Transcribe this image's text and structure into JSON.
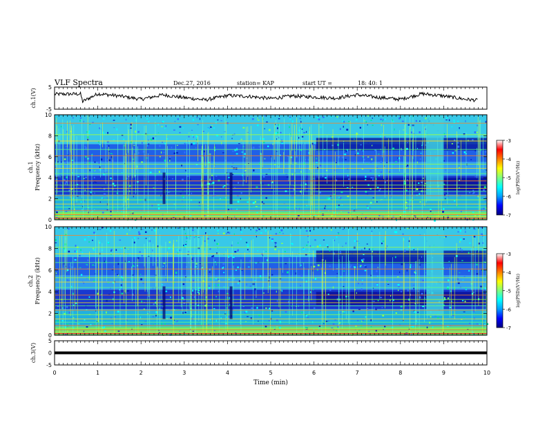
{
  "header": {
    "title": "VLF Spectra",
    "date": "Dec.27, 2016",
    "station": "station= KAP",
    "start": "start UT =",
    "start_time": "18: 40: 1"
  },
  "chart_data": [
    {
      "type": "line",
      "panel": "ch1-waveform",
      "ylabel": "ch.1(V)",
      "ylim": [
        -5,
        5
      ],
      "yticks": [
        "5",
        "-5"
      ],
      "xlim": [
        0,
        10
      ],
      "description_values": "noisy waveform around ~0 V fluctuating between about -1 and +3",
      "x": [
        0,
        0.6,
        0.65,
        1,
        1.5,
        2,
        2.5,
        3,
        3.5,
        4,
        4.5,
        5,
        5.5,
        6,
        6.5,
        7,
        7.5,
        8,
        8.5,
        9,
        9.5,
        9.8
      ],
      "y": [
        1.8,
        1.9,
        -1.5,
        2.0,
        1.0,
        -0.5,
        1.5,
        0.2,
        -0.8,
        1.2,
        0.8,
        -0.2,
        1.0,
        0.5,
        0.0,
        1.5,
        0.3,
        -0.5,
        2.0,
        1.0,
        -0.5,
        -1.0
      ]
    },
    {
      "type": "heatmap",
      "panel": "ch1-spectrogram",
      "ylabel_line1": "ch.1",
      "ylabel_line2": "Frequency (kHz)",
      "ylim": [
        0,
        10
      ],
      "yticks": [
        "0",
        "2",
        "4",
        "6",
        "8",
        "10"
      ],
      "xlim": [
        0,
        10
      ],
      "colorbar": {
        "label": "log(PSD)(V²/Hz)",
        "range": [
          -7,
          -3
        ],
        "ticks": [
          "-3",
          "-4",
          "-5",
          "-6",
          "-7"
        ]
      }
    },
    {
      "type": "heatmap",
      "panel": "ch2-spectrogram",
      "ylabel_line1": "ch.2",
      "ylabel_line2": "Frequency (kHz)",
      "ylim": [
        0,
        10
      ],
      "yticks": [
        "0",
        "2",
        "4",
        "6",
        "8",
        "10"
      ],
      "xlim": [
        0,
        10
      ],
      "colorbar": {
        "label": "log(PSD)(V²/Hz)",
        "range": [
          -7,
          -3
        ],
        "ticks": [
          "-3",
          "-4",
          "-5",
          "-6",
          "-7"
        ]
      }
    },
    {
      "type": "line",
      "panel": "ch3-waveform",
      "ylabel": "ch.3(V)",
      "ylim": [
        -5,
        5
      ],
      "yticks": [
        "5",
        "0",
        "-5"
      ],
      "xlim": [
        0,
        10
      ],
      "x": [
        0,
        10
      ],
      "y": [
        0,
        0
      ],
      "xlabel": "Time (min)",
      "xticks": [
        "0",
        "1",
        "2",
        "3",
        "4",
        "5",
        "6",
        "7",
        "8",
        "9",
        "10"
      ]
    }
  ],
  "colors": {
    "bg_high": "#40d8f0",
    "bg_mid": "#1040e0",
    "bg_low": "#000080",
    "band_line": "#e8e020",
    "colormap": [
      "#00007f",
      "#0000ff",
      "#00a0ff",
      "#00ffff",
      "#7fff7f",
      "#ffff00",
      "#ff7f00",
      "#ff0000",
      "#ffffff"
    ]
  }
}
